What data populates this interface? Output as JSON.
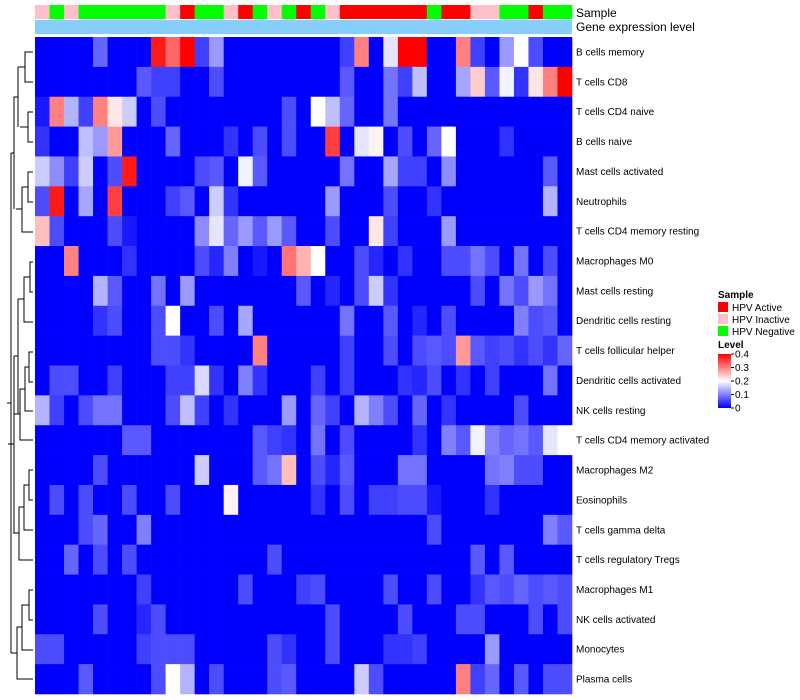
{
  "chart_data": {
    "type": "heatmap",
    "annotation_labels": {
      "sample": "Sample",
      "gene": "Gene expression level"
    },
    "legend": {
      "sample_title": "Sample",
      "sample_items": [
        {
          "label": "HPV Active",
          "color": "#ff0000"
        },
        {
          "label": "HPV Inactive",
          "color": "#ffc0cb"
        },
        {
          "label": "HPV Negative",
          "color": "#00ff00"
        }
      ],
      "level_title": "Level",
      "level_ticks": [
        "0.4",
        "0.3",
        "0.2",
        "0.1",
        "0"
      ],
      "level_range": [
        0,
        0.4
      ]
    },
    "colors": {
      "low": "#0000ff",
      "mid": "#ffffff",
      "high": "#ff0000",
      "gene_bar": "#87cefa"
    },
    "sample_groups": [
      1,
      2,
      1,
      2,
      2,
      2,
      2,
      2,
      2,
      1,
      0,
      2,
      2,
      1,
      0,
      2,
      1,
      2,
      0,
      2,
      1,
      0,
      0,
      0,
      0,
      0,
      0,
      2,
      0,
      0,
      1,
      1,
      2,
      2,
      0,
      2,
      2
    ],
    "rows": [
      "B cells memory",
      "T cells CD8",
      "T cells CD4 naive",
      "B cells naive",
      "Mast cells activated",
      "Neutrophils",
      "T cells CD4 memory resting",
      "Macrophages M0",
      "Mast cells resting",
      "Dendritic cells resting",
      "T cells follicular helper",
      "Dendritic cells activated",
      "NK cells resting",
      "T cells CD4 memory activated",
      "Macrophages M2",
      "Eosinophils",
      "T cells gamma delta",
      "T cells regulatory  Tregs",
      "Macrophages M1",
      "NK cells activated",
      "Monocytes",
      "Plasma cells"
    ],
    "values": [
      [
        0,
        0,
        0,
        0,
        0.08,
        0,
        0,
        0,
        0.38,
        0.32,
        0.4,
        0.05,
        0.12,
        0,
        0,
        0,
        0,
        0,
        0,
        0,
        0,
        0.05,
        0.3,
        0,
        0.18,
        0.4,
        0.4,
        0,
        0,
        0.3,
        0.05,
        0,
        0.12,
        0.2,
        0.06,
        0,
        0
      ],
      [
        0,
        0,
        0,
        0,
        0,
        0,
        0,
        0.07,
        0.05,
        0.05,
        0,
        0,
        0.06,
        0,
        0,
        0,
        0,
        0,
        0,
        0,
        0,
        0.07,
        0,
        0,
        0.09,
        0.05,
        0.15,
        0,
        0,
        0.13,
        0.24,
        0.07,
        0.19,
        0.04,
        0.22,
        0.3,
        0.4
      ],
      [
        0.02,
        0.3,
        0.14,
        0.05,
        0.3,
        0.22,
        0.16,
        0,
        0.06,
        0,
        0,
        0,
        0,
        0,
        0,
        0,
        0,
        0.06,
        0,
        0.2,
        0.15,
        0.08,
        0,
        0,
        0.09,
        0,
        0,
        0,
        0,
        0,
        0,
        0,
        0,
        0,
        0,
        0,
        0
      ],
      [
        0.04,
        0,
        0,
        0.15,
        0.12,
        0.28,
        0,
        0,
        0,
        0.08,
        0,
        0,
        0,
        0.04,
        0,
        0.06,
        0,
        0.06,
        0,
        0,
        0.35,
        0,
        0.18,
        0.21,
        0,
        0.06,
        0,
        0.08,
        0.2,
        0,
        0,
        0,
        0.04,
        0,
        0,
        0,
        0
      ],
      [
        0.16,
        0.11,
        0.05,
        0.16,
        0,
        0.06,
        0.38,
        0,
        0,
        0,
        0,
        0.06,
        0.07,
        0,
        0.19,
        0.07,
        0,
        0,
        0,
        0,
        0,
        0.09,
        0,
        0,
        0.13,
        0.05,
        0.05,
        0,
        0.11,
        0,
        0,
        0,
        0,
        0,
        0,
        0.07,
        0
      ],
      [
        0.06,
        0.38,
        0,
        0.13,
        0,
        0.35,
        0,
        0,
        0,
        0.05,
        0.07,
        0,
        0.16,
        0.04,
        0,
        0,
        0,
        0,
        0,
        0,
        0.12,
        0,
        0,
        0,
        0.06,
        0,
        0,
        0.04,
        0,
        0,
        0,
        0,
        0,
        0,
        0,
        0.14,
        0
      ],
      [
        0.25,
        0.06,
        0,
        0,
        0,
        0.06,
        0.02,
        0,
        0,
        0,
        0,
        0.11,
        0.18,
        0.08,
        0.12,
        0.07,
        0.12,
        0.07,
        0,
        0,
        0.06,
        0,
        0,
        0.22,
        0.05,
        0,
        0,
        0,
        0.12,
        0,
        0,
        0,
        0,
        0,
        0,
        0,
        0
      ],
      [
        0,
        0,
        0.3,
        0,
        0,
        0,
        0.04,
        0,
        0,
        0,
        0,
        0.06,
        0.03,
        0.1,
        0,
        0.02,
        0,
        0.31,
        0.26,
        0.2,
        0,
        0,
        0.06,
        0.03,
        0,
        0.04,
        0,
        0,
        0.06,
        0.06,
        0.09,
        0.06,
        0,
        0.09,
        0,
        0.06,
        0
      ],
      [
        0,
        0,
        0,
        0,
        0.14,
        0.07,
        0,
        0,
        0.09,
        0,
        0.12,
        0,
        0,
        0,
        0,
        0,
        0,
        0,
        0.07,
        0,
        0.03,
        0,
        0.06,
        0.16,
        0.04,
        0,
        0,
        0,
        0,
        0,
        0.06,
        0,
        0.09,
        0.06,
        0.12,
        0.09,
        0
      ],
      [
        0,
        0,
        0,
        0,
        0.04,
        0.06,
        0,
        0,
        0.06,
        0.2,
        0,
        0,
        0.06,
        0,
        0.13,
        0,
        0,
        0,
        0,
        0,
        0,
        0.09,
        0,
        0,
        0.07,
        0,
        0.03,
        0,
        0.06,
        0,
        0,
        0,
        0,
        0.1,
        0.06,
        0.07,
        0
      ],
      [
        0,
        0,
        0,
        0,
        0,
        0,
        0,
        0,
        0.06,
        0.06,
        0.04,
        0,
        0,
        0,
        0,
        0.3,
        0,
        0,
        0,
        0,
        0,
        0.05,
        0,
        0,
        0.06,
        0,
        0.06,
        0.07,
        0.06,
        0.28,
        0.07,
        0.05,
        0.06,
        0.04,
        0.06,
        0.04,
        0.08
      ],
      [
        0,
        0.06,
        0.06,
        0,
        0,
        0.05,
        0,
        0,
        0,
        0.05,
        0.05,
        0.17,
        0.04,
        0,
        0.1,
        0.04,
        0,
        0,
        0,
        0.05,
        0,
        0.05,
        0,
        0,
        0,
        0.04,
        0.03,
        0.06,
        0,
        0.04,
        0,
        0.05,
        0,
        0,
        0,
        0.09,
        0
      ],
      [
        0.14,
        0.05,
        0,
        0.06,
        0.09,
        0.09,
        0,
        0,
        0,
        0.06,
        0.15,
        0.05,
        0,
        0.04,
        0,
        0,
        0,
        0.12,
        0,
        0.08,
        0.05,
        0,
        0.14,
        0.1,
        0.06,
        0,
        0.08,
        0,
        0.04,
        0,
        0,
        0,
        0,
        0.06,
        0,
        0,
        0
      ],
      [
        0,
        0,
        0,
        0,
        0,
        0,
        0.07,
        0.07,
        0,
        0,
        0,
        0,
        0,
        0,
        0,
        0.07,
        0.05,
        0.04,
        0,
        0.09,
        0,
        0.06,
        0,
        0,
        0,
        0,
        0.04,
        0,
        0.1,
        0.07,
        0.19,
        0.1,
        0.08,
        0.09,
        0.07,
        0.18,
        0.2
      ],
      [
        0,
        0,
        0,
        0,
        0.06,
        0,
        0,
        0,
        0,
        0,
        0,
        0.16,
        0,
        0,
        0,
        0.07,
        0.09,
        0.25,
        0,
        0.06,
        0.03,
        0.07,
        0,
        0,
        0,
        0.09,
        0.09,
        0,
        0,
        0,
        0,
        0.09,
        0.1,
        0.06,
        0.06,
        0,
        0
      ],
      [
        0,
        0.06,
        0,
        0.06,
        0,
        0,
        0.06,
        0,
        0,
        0.06,
        0,
        0,
        0,
        0.21,
        0,
        0,
        0,
        0,
        0,
        0.04,
        0,
        0.06,
        0,
        0.05,
        0.05,
        0.06,
        0.06,
        0.02,
        0,
        0,
        0,
        0.04,
        0,
        0,
        0,
        0,
        0
      ],
      [
        0,
        0,
        0,
        0.06,
        0.08,
        0,
        0,
        0.1,
        0,
        0,
        0,
        0,
        0,
        0,
        0,
        0,
        0,
        0,
        0,
        0,
        0,
        0,
        0,
        0,
        0,
        0,
        0,
        0.06,
        0,
        0,
        0,
        0,
        0,
        0,
        0,
        0.1,
        0.07
      ],
      [
        0,
        0,
        0.08,
        0,
        0.06,
        0,
        0.06,
        0,
        0,
        0,
        0,
        0,
        0,
        0,
        0,
        0,
        0.06,
        0,
        0,
        0,
        0,
        0,
        0,
        0,
        0,
        0,
        0,
        0,
        0,
        0,
        0.07,
        0,
        0.07,
        0,
        0,
        0,
        0
      ],
      [
        0,
        0,
        0,
        0,
        0,
        0,
        0,
        0.05,
        0,
        0,
        0,
        0,
        0,
        0,
        0.06,
        0,
        0,
        0,
        0.05,
        0.06,
        0,
        0,
        0,
        0,
        0.06,
        0,
        0,
        0.06,
        0,
        0,
        0.04,
        0.07,
        0.06,
        0.08,
        0.06,
        0.07,
        0.06
      ],
      [
        0,
        0,
        0,
        0,
        0.06,
        0,
        0,
        0.03,
        0.06,
        0,
        0,
        0,
        0,
        0,
        0,
        0,
        0,
        0,
        0,
        0,
        0.06,
        0,
        0,
        0,
        0,
        0.06,
        0,
        0,
        0,
        0.06,
        0.06,
        0,
        0,
        0,
        0.06,
        0,
        0.06
      ],
      [
        0.06,
        0.06,
        0,
        0,
        0,
        0,
        0,
        0.05,
        0.06,
        0.06,
        0.06,
        0,
        0,
        0,
        0,
        0,
        0.06,
        0.04,
        0,
        0,
        0.06,
        0,
        0,
        0,
        0.04,
        0.04,
        0.05,
        0,
        0,
        0,
        0,
        0.12,
        0,
        0,
        0,
        0,
        0
      ],
      [
        0,
        0,
        0,
        0.07,
        0,
        0,
        0,
        0,
        0.06,
        0.2,
        0.14,
        0,
        0.06,
        0,
        0,
        0,
        0.06,
        0.07,
        0,
        0,
        0,
        0,
        0.16,
        0.06,
        0,
        0,
        0,
        0,
        0,
        0.3,
        0.05,
        0.08,
        0,
        0.07,
        0,
        0.06,
        0.06
      ]
    ]
  }
}
